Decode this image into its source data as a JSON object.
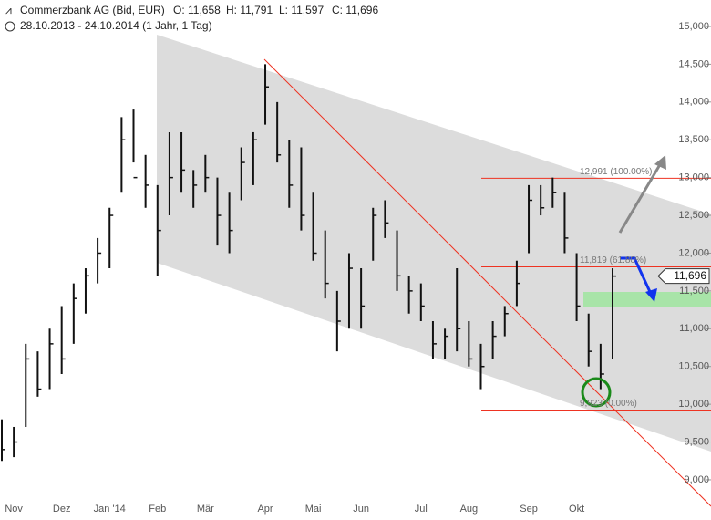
{
  "chart_data": {
    "type": "hilo",
    "title": "Commerzbank AG (Bid, EUR)",
    "quote": [
      "O: 11,658",
      "H: 11,791",
      "L: 11,597",
      "C: 11,696"
    ],
    "subtitle": "28.10.2013 - 24.10.2014 (1 Jahr, 1 Tag)",
    "categories": [
      null,
      "Nov",
      null,
      null,
      null,
      "Dez",
      null,
      null,
      null,
      "Jan '14",
      null,
      null,
      null,
      "Feb",
      null,
      null,
      null,
      "Mär",
      null,
      null,
      null,
      null,
      "Apr",
      null,
      null,
      null,
      "Mai",
      null,
      null,
      null,
      "Jun",
      null,
      null,
      null,
      null,
      "Jul",
      null,
      null,
      null,
      "Aug",
      null,
      null,
      null,
      null,
      "Sep",
      null,
      null,
      null,
      "Okt",
      null,
      null,
      null
    ],
    "high": [
      9800,
      9700,
      10800,
      10700,
      11000,
      11300,
      11600,
      11800,
      12200,
      12600,
      13800,
      13900,
      13300,
      12900,
      13600,
      13600,
      13100,
      13300,
      13000,
      12800,
      13400,
      13600,
      14500,
      14000,
      13500,
      13400,
      12800,
      12300,
      11500,
      12000,
      11800,
      12600,
      12700,
      12300,
      11700,
      11600,
      11100,
      11000,
      11800,
      11100,
      10800,
      11100,
      11300,
      11900,
      12900,
      12900,
      13000,
      12800,
      12000,
      11200,
      10800,
      11800
    ],
    "low": [
      9250,
      9300,
      9700,
      10100,
      10200,
      10400,
      10800,
      11200,
      11600,
      11800,
      12800,
      13200,
      12600,
      11700,
      12500,
      12800,
      12600,
      12800,
      12100,
      12000,
      12700,
      12900,
      13700,
      13200,
      12600,
      12300,
      11900,
      11400,
      10700,
      11000,
      11000,
      11900,
      12200,
      11500,
      11200,
      11100,
      10600,
      10600,
      10700,
      10500,
      10200,
      10600,
      10900,
      11300,
      12000,
      12500,
      12600,
      12000,
      11100,
      10500,
      10200,
      10600
    ],
    "close": [
      9400,
      9500,
      10600,
      10200,
      10800,
      10600,
      11400,
      11700,
      12000,
      12500,
      13500,
      13000,
      12900,
      12300,
      13000,
      13100,
      12900,
      13000,
      12500,
      12300,
      13200,
      13500,
      14200,
      13300,
      12900,
      12500,
      12000,
      11600,
      11100,
      11800,
      11300,
      12500,
      12400,
      11700,
      11500,
      11300,
      10800,
      10900,
      11000,
      10600,
      10500,
      10900,
      11200,
      11600,
      12700,
      12600,
      12800,
      12200,
      11300,
      10700,
      10400,
      11696
    ],
    "last_label": "11,696",
    "color": "#111111",
    "ylim": [
      8770,
      15350
    ],
    "yticks": [
      {
        "value": 9000,
        "label": "9,000"
      },
      {
        "value": 9500,
        "label": "9,500"
      },
      {
        "value": 10000,
        "label": "10,000"
      },
      {
        "value": 10500,
        "label": "10,500"
      },
      {
        "value": 11000,
        "label": "11,000"
      },
      {
        "value": 11500,
        "label": "11,500"
      },
      {
        "value": 12000,
        "label": "12,000"
      },
      {
        "value": 12500,
        "label": "12,500"
      },
      {
        "value": 13000,
        "label": "13,000"
      },
      {
        "value": 13500,
        "label": "13,500"
      },
      {
        "value": 14000,
        "label": "14,000"
      },
      {
        "value": 14500,
        "label": "14,500"
      },
      {
        "value": 15000,
        "label": "15,000"
      }
    ],
    "fib_levels": [
      {
        "value": 12991,
        "label": "12,991 (100.00%)"
      },
      {
        "value": 11819,
        "label": "11,819 (61.80%)"
      },
      {
        "value": 9923,
        "label": "9,923 (0.00%)"
      }
    ]
  }
}
